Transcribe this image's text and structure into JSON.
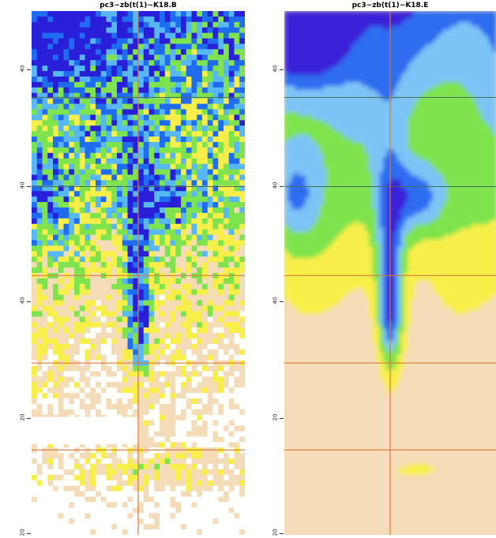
{
  "panels": [
    {
      "title": "pc3~zb(t(1)~K18.B",
      "type": "heatmap",
      "style": "pixelated",
      "y_tick_labels": [
        "40",
        "40",
        "40",
        "20",
        "20",
        ""
      ],
      "horizontal_gridlines": 4,
      "vertical_gridlines": 1
    },
    {
      "title": "pc3~zb(t(1)~K18.E",
      "type": "heatmap",
      "style": "smoothed",
      "y_tick_labels": [
        "40",
        "40",
        "40",
        "20",
        "20",
        ""
      ],
      "horizontal_gridlines": 4,
      "vertical_gridlines": 1
    }
  ],
  "chart_data": [
    {
      "type": "heatmap",
      "title": "pc3~zb(t(1)~K18.B",
      "color_scale": [
        "#2a1fd8",
        "#1f6cf0",
        "#58b8f5",
        "#7ee34e",
        "#f7ee4a",
        "#f4dcb8",
        "#ffffff"
      ],
      "grid": true,
      "pattern": "noisy"
    },
    {
      "type": "heatmap",
      "title": "pc3~zb(t(1)~K18.E",
      "color_scale": [
        "#3a20d8",
        "#2e6cf0",
        "#7cc4f5",
        "#7ee34e",
        "#f7ee4a",
        "#f4dcb8"
      ],
      "grid": true,
      "pattern": "smooth"
    }
  ],
  "colors": {
    "grid_line": "#d97a3a",
    "background": "#f4dcb8"
  }
}
